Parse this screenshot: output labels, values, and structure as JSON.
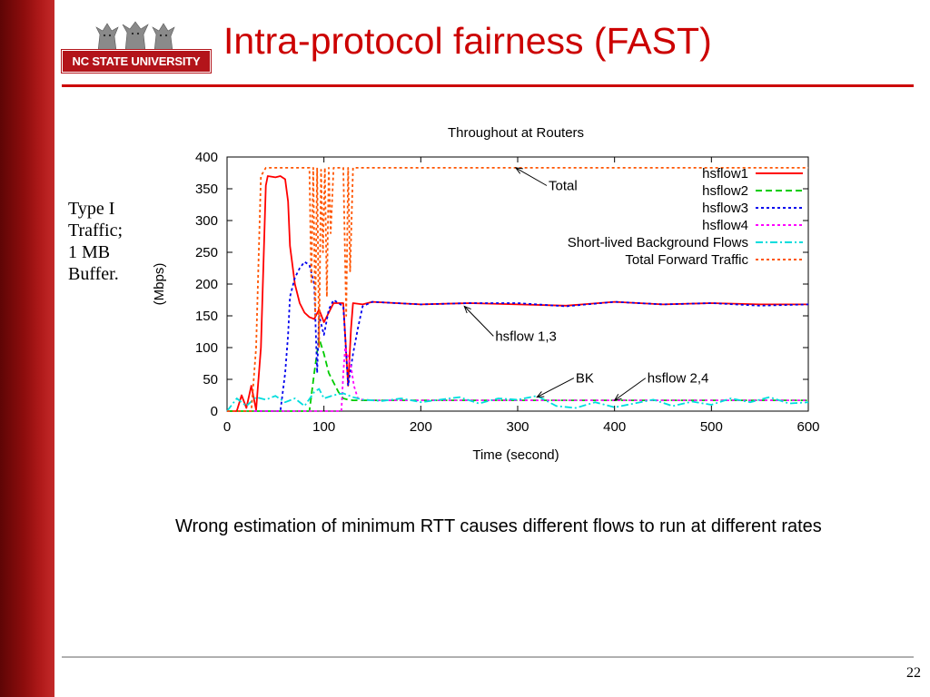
{
  "slide": {
    "title": "Intra-protocol fairness (FAST)",
    "logo_text": "NC STATE UNIVERSITY",
    "side_note": [
      "Type I",
      "Traffic;",
      "1 MB",
      "Buffer."
    ],
    "caption": "Wrong estimation of minimum RTT causes different flows to run at different rates",
    "page_number": "22",
    "colors": {
      "title": "#cc0000",
      "sidebar": "#8e0d0d",
      "rule": "#cc0000",
      "logo_bar": "#b3141a"
    }
  },
  "chart_data": {
    "type": "line",
    "title": "Throughout at Routers",
    "xlabel": "Time (second)",
    "ylabel": "(Mbps)",
    "xlim": [
      0,
      600
    ],
    "ylim": [
      0,
      400
    ],
    "xticks": [
      0,
      100,
      200,
      300,
      400,
      500,
      600
    ],
    "yticks": [
      0,
      50,
      100,
      150,
      200,
      250,
      300,
      350,
      400
    ],
    "grid": false,
    "legend_position": "top-right",
    "series": [
      {
        "name": "hsflow1",
        "color": "#ff0000",
        "style": "solid",
        "x": [
          0,
          10,
          15,
          20,
          25,
          30,
          35,
          40,
          42,
          50,
          55,
          60,
          63,
          65,
          70,
          75,
          80,
          85,
          90,
          95,
          100,
          105,
          110,
          120,
          125,
          128,
          130,
          140,
          150,
          200,
          250,
          300,
          350,
          400,
          450,
          500,
          550,
          600
        ],
        "y": [
          0,
          0,
          25,
          5,
          40,
          2,
          100,
          355,
          370,
          368,
          370,
          365,
          330,
          260,
          200,
          170,
          155,
          148,
          145,
          160,
          140,
          155,
          170,
          170,
          40,
          130,
          170,
          168,
          172,
          168,
          170,
          168,
          166,
          172,
          168,
          170,
          168,
          168
        ]
      },
      {
        "name": "hsflow2",
        "color": "#00cc00",
        "style": "dashed",
        "x": [
          0,
          85,
          90,
          95,
          100,
          105,
          110,
          115,
          120,
          125,
          130,
          200,
          300,
          400,
          500,
          600
        ],
        "y": [
          0,
          0,
          60,
          115,
          90,
          60,
          45,
          30,
          20,
          18,
          17,
          17,
          17,
          17,
          17,
          17
        ]
      },
      {
        "name": "hsflow3",
        "color": "#0000ee",
        "style": "dotted",
        "x": [
          0,
          55,
          60,
          63,
          65,
          70,
          75,
          80,
          85,
          90,
          93,
          95,
          100,
          105,
          110,
          115,
          120,
          125,
          130,
          135,
          140,
          150,
          200,
          250,
          300,
          350,
          400,
          450,
          500,
          550,
          600
        ],
        "y": [
          0,
          0,
          60,
          120,
          180,
          210,
          225,
          235,
          230,
          200,
          60,
          150,
          120,
          160,
          175,
          170,
          165,
          40,
          90,
          130,
          165,
          172,
          168,
          170,
          170,
          165,
          172,
          168,
          170,
          166,
          168
        ]
      },
      {
        "name": "hsflow4",
        "color": "#ff00ff",
        "style": "dotted",
        "x": [
          0,
          118,
          120,
          122,
          125,
          128,
          131,
          135,
          140,
          150,
          200,
          300,
          400,
          500,
          600
        ],
        "y": [
          0,
          0,
          60,
          100,
          85,
          70,
          40,
          20,
          18,
          17,
          17,
          17,
          17,
          17,
          17
        ]
      },
      {
        "name": "Short-lived Background Flows",
        "color": "#00dddd",
        "style": "dash-dot",
        "x": [
          0,
          10,
          20,
          30,
          40,
          50,
          60,
          70,
          80,
          90,
          95,
          100,
          110,
          120,
          130,
          140,
          160,
          180,
          200,
          220,
          240,
          260,
          280,
          300,
          320,
          340,
          360,
          380,
          400,
          420,
          440,
          460,
          480,
          500,
          520,
          540,
          560,
          580,
          600
        ],
        "y": [
          0,
          20,
          8,
          22,
          18,
          24,
          14,
          20,
          8,
          30,
          35,
          20,
          25,
          28,
          22,
          18,
          16,
          20,
          14,
          18,
          22,
          12,
          20,
          18,
          24,
          8,
          5,
          14,
          6,
          12,
          18,
          8,
          15,
          10,
          20,
          14,
          22,
          12,
          14
        ]
      },
      {
        "name": "Total Forward Traffic",
        "color": "#ff5500",
        "style": "dotted",
        "x": [
          0,
          25,
          30,
          35,
          40,
          45,
          50,
          60,
          80,
          85,
          87,
          89,
          91,
          93,
          95,
          97,
          99,
          101,
          103,
          105,
          107,
          110,
          115,
          120,
          123,
          125,
          127,
          130,
          135,
          140,
          200,
          300,
          400,
          500,
          600
        ],
        "y": [
          0,
          0,
          100,
          370,
          383,
          383,
          383,
          383,
          383,
          383,
          200,
          383,
          150,
          383,
          100,
          380,
          250,
          383,
          180,
          383,
          280,
          383,
          383,
          383,
          150,
          383,
          220,
          383,
          383,
          383,
          383,
          383,
          383,
          383,
          383
        ]
      }
    ],
    "annotations": [
      {
        "text": "Total",
        "target_x": 298,
        "target_y": 383,
        "label_x": 330,
        "label_y": 355
      },
      {
        "text": "hsflow 1,3",
        "target_x": 245,
        "target_y": 165,
        "label_x": 275,
        "label_y": 118
      },
      {
        "text": "BK",
        "target_x": 320,
        "target_y": 22,
        "label_x": 358,
        "label_y": 52
      },
      {
        "text": "hsflow 2,4",
        "target_x": 400,
        "target_y": 17,
        "label_x": 432,
        "label_y": 52
      }
    ]
  }
}
